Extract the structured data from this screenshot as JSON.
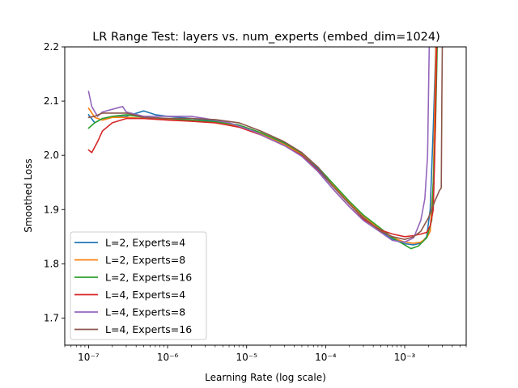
{
  "chart_data": {
    "type": "line",
    "title": "LR Range Test: layers vs. num_experts (embed_dim=1024)",
    "xlabel": "Learning Rate (log scale)",
    "ylabel": "Smoothed Loss",
    "xscale": "log",
    "xlim": [
      5e-08,
      0.006
    ],
    "ylim": [
      1.65,
      2.2
    ],
    "grid": false,
    "legend_position": "lower-left",
    "x_ticks": [
      {
        "value": 1e-07,
        "label": "10⁻⁷"
      },
      {
        "value": 1e-06,
        "label": "10⁻⁶"
      },
      {
        "value": 1e-05,
        "label": "10⁻⁵"
      },
      {
        "value": 0.0001,
        "label": "10⁻⁴"
      },
      {
        "value": 0.001,
        "label": "10⁻³"
      }
    ],
    "y_ticks": [
      {
        "value": 1.7,
        "label": "1.7"
      },
      {
        "value": 1.8,
        "label": "1.8"
      },
      {
        "value": 1.9,
        "label": "1.9"
      },
      {
        "value": 2.0,
        "label": "2.0"
      },
      {
        "value": 2.1,
        "label": "2.1"
      },
      {
        "value": 2.2,
        "label": "2.2"
      }
    ],
    "series": [
      {
        "name": "L=2, Experts=4",
        "color": "#1f77b4",
        "points": [
          [
            1e-07,
            2.075
          ],
          [
            1.2e-07,
            2.06
          ],
          [
            1.5e-07,
            2.068
          ],
          [
            2e-07,
            2.07
          ],
          [
            3e-07,
            2.072
          ],
          [
            5e-07,
            2.082
          ],
          [
            7e-07,
            2.075
          ],
          [
            1e-06,
            2.072
          ],
          [
            2e-06,
            2.068
          ],
          [
            4e-06,
            2.063
          ],
          [
            8e-06,
            2.055
          ],
          [
            1.5e-05,
            2.04
          ],
          [
            3e-05,
            2.022
          ],
          [
            5e-05,
            2.002
          ],
          [
            8e-05,
            1.975
          ],
          [
            0.00012,
            1.945
          ],
          [
            0.0002,
            1.91
          ],
          [
            0.0003,
            1.885
          ],
          [
            0.0005,
            1.86
          ],
          [
            0.0007,
            1.845
          ],
          [
            0.001,
            1.837
          ],
          [
            0.0013,
            1.835
          ],
          [
            0.0016,
            1.838
          ],
          [
            0.0019,
            1.85
          ],
          [
            0.0021,
            1.9
          ],
          [
            0.0023,
            2.05
          ],
          [
            0.0025,
            2.22
          ]
        ]
      },
      {
        "name": "L=2, Experts=8",
        "color": "#ff7f0e",
        "points": [
          [
            1e-07,
            2.087
          ],
          [
            1.2e-07,
            2.07
          ],
          [
            1.5e-07,
            2.065
          ],
          [
            2e-07,
            2.07
          ],
          [
            3e-07,
            2.07
          ],
          [
            5e-07,
            2.068
          ],
          [
            1e-06,
            2.066
          ],
          [
            2e-06,
            2.063
          ],
          [
            4e-06,
            2.06
          ],
          [
            8e-06,
            2.053
          ],
          [
            1.5e-05,
            2.04
          ],
          [
            3e-05,
            2.02
          ],
          [
            5e-05,
            2.003
          ],
          [
            8e-05,
            1.978
          ],
          [
            0.00012,
            1.948
          ],
          [
            0.0002,
            1.913
          ],
          [
            0.0003,
            1.888
          ],
          [
            0.0005,
            1.862
          ],
          [
            0.0007,
            1.848
          ],
          [
            0.001,
            1.84
          ],
          [
            0.0013,
            1.838
          ],
          [
            0.0016,
            1.84
          ],
          [
            0.0019,
            1.848
          ],
          [
            0.0021,
            1.86
          ],
          [
            0.0023,
            1.95
          ],
          [
            0.0025,
            2.22
          ]
        ]
      },
      {
        "name": "L=2, Experts=16",
        "color": "#2ca02c",
        "points": [
          [
            1e-07,
            2.05
          ],
          [
            1.2e-07,
            2.06
          ],
          [
            1.5e-07,
            2.068
          ],
          [
            2e-07,
            2.072
          ],
          [
            3e-07,
            2.075
          ],
          [
            5e-07,
            2.07
          ],
          [
            1e-06,
            2.068
          ],
          [
            2e-06,
            2.065
          ],
          [
            4e-06,
            2.062
          ],
          [
            8e-06,
            2.056
          ],
          [
            1.5e-05,
            2.042
          ],
          [
            3e-05,
            2.023
          ],
          [
            5e-05,
            2.004
          ],
          [
            8e-05,
            1.978
          ],
          [
            0.00012,
            1.95
          ],
          [
            0.0002,
            1.915
          ],
          [
            0.0003,
            1.89
          ],
          [
            0.0005,
            1.865
          ],
          [
            0.0007,
            1.848
          ],
          [
            0.001,
            1.835
          ],
          [
            0.0012,
            1.828
          ],
          [
            0.0015,
            1.833
          ],
          [
            0.0019,
            1.848
          ],
          [
            0.0022,
            1.88
          ],
          [
            0.00245,
            2.05
          ],
          [
            0.0026,
            2.22
          ]
        ]
      },
      {
        "name": "L=4, Experts=4",
        "color": "#d62728",
        "points": [
          [
            1e-07,
            2.01
          ],
          [
            1.1e-07,
            2.005
          ],
          [
            1.3e-07,
            2.025
          ],
          [
            1.5e-07,
            2.045
          ],
          [
            2e-07,
            2.06
          ],
          [
            3e-07,
            2.068
          ],
          [
            5e-07,
            2.068
          ],
          [
            1e-06,
            2.065
          ],
          [
            2e-06,
            2.063
          ],
          [
            4e-06,
            2.06
          ],
          [
            8e-06,
            2.052
          ],
          [
            1.5e-05,
            2.038
          ],
          [
            3e-05,
            2.018
          ],
          [
            5e-05,
            2.0
          ],
          [
            8e-05,
            1.972
          ],
          [
            0.00012,
            1.94
          ],
          [
            0.0002,
            1.905
          ],
          [
            0.0003,
            1.882
          ],
          [
            0.0005,
            1.862
          ],
          [
            0.0007,
            1.855
          ],
          [
            0.001,
            1.85
          ],
          [
            0.0013,
            1.852
          ],
          [
            0.0016,
            1.855
          ],
          [
            0.0019,
            1.858
          ],
          [
            0.0021,
            1.87
          ],
          [
            0.0023,
            1.9
          ],
          [
            0.0024,
            2.0
          ],
          [
            0.00255,
            2.22
          ]
        ]
      },
      {
        "name": "L=4, Experts=8",
        "color": "#9467bd",
        "points": [
          [
            1e-07,
            2.118
          ],
          [
            1.1e-07,
            2.09
          ],
          [
            1.3e-07,
            2.072
          ],
          [
            1.5e-07,
            2.08
          ],
          [
            2e-07,
            2.085
          ],
          [
            2.7e-07,
            2.09
          ],
          [
            3e-07,
            2.08
          ],
          [
            5e-07,
            2.072
          ],
          [
            1e-06,
            2.072
          ],
          [
            2e-06,
            2.072
          ],
          [
            3e-06,
            2.068
          ],
          [
            6e-06,
            2.06
          ],
          [
            1.2e-05,
            2.045
          ],
          [
            2e-05,
            2.03
          ],
          [
            3e-05,
            2.018
          ],
          [
            5e-05,
            1.998
          ],
          [
            8e-05,
            1.97
          ],
          [
            0.00012,
            1.94
          ],
          [
            0.0002,
            1.905
          ],
          [
            0.0003,
            1.88
          ],
          [
            0.0005,
            1.858
          ],
          [
            0.0007,
            1.843
          ],
          [
            0.001,
            1.84
          ],
          [
            0.0013,
            1.848
          ],
          [
            0.0016,
            1.88
          ],
          [
            0.0018,
            1.92
          ],
          [
            0.00195,
            2.0
          ],
          [
            0.00205,
            2.22
          ]
        ]
      },
      {
        "name": "L=4, Experts=16",
        "color": "#8c564b",
        "points": [
          [
            1e-07,
            2.07
          ],
          [
            1.2e-07,
            2.072
          ],
          [
            1.5e-07,
            2.078
          ],
          [
            2e-07,
            2.078
          ],
          [
            3e-07,
            2.078
          ],
          [
            5e-07,
            2.07
          ],
          [
            1e-06,
            2.068
          ],
          [
            2e-06,
            2.068
          ],
          [
            4e-06,
            2.066
          ],
          [
            8e-06,
            2.06
          ],
          [
            1.5e-05,
            2.045
          ],
          [
            3e-05,
            2.025
          ],
          [
            5e-05,
            2.005
          ],
          [
            8e-05,
            1.978
          ],
          [
            0.00012,
            1.945
          ],
          [
            0.0002,
            1.91
          ],
          [
            0.0003,
            1.885
          ],
          [
            0.0005,
            1.86
          ],
          [
            0.0007,
            1.85
          ],
          [
            0.001,
            1.845
          ],
          [
            0.0013,
            1.85
          ],
          [
            0.0016,
            1.86
          ],
          [
            0.002,
            1.885
          ],
          [
            0.0024,
            1.915
          ],
          [
            0.00275,
            1.935
          ],
          [
            0.0029,
            1.94
          ],
          [
            0.00295,
            2.1
          ],
          [
            0.003,
            2.22
          ]
        ]
      }
    ]
  }
}
